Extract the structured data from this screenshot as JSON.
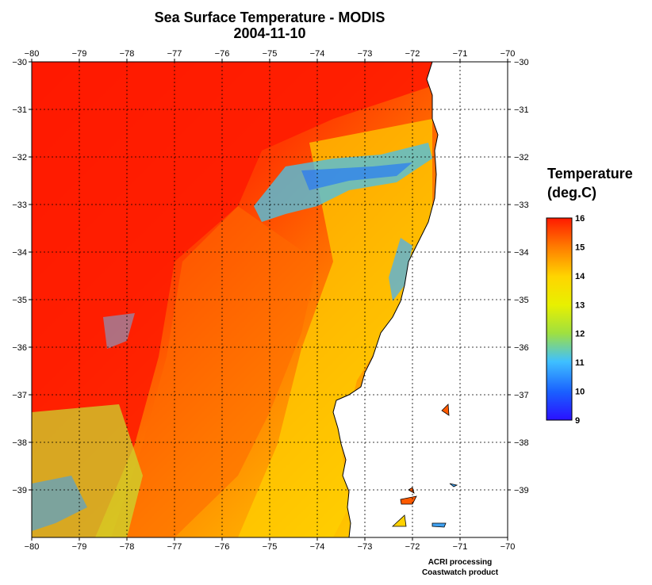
{
  "title": {
    "line1": "Sea Surface Temperature - MODIS",
    "line2": "2004-11-10"
  },
  "map": {
    "lon_ticks": [
      -80,
      -79,
      -78,
      -77,
      -76,
      -75,
      -74,
      -73,
      -72,
      -71,
      -70
    ],
    "lat_ticks_left": [
      -30,
      -31,
      -32,
      -33,
      -34,
      -35,
      -36,
      -37,
      -38,
      -39
    ],
    "lat_ticks_right": [
      -30,
      -31,
      -32,
      -33,
      -34,
      -35,
      -36,
      -37,
      -38,
      -39
    ],
    "lon_range": [
      -80,
      -70
    ],
    "lat_range": [
      -30,
      -40
    ],
    "grid": "dotted",
    "land_color": "#ffffff",
    "coastline_color": "#000000"
  },
  "legend": {
    "title_line1": "Temperature",
    "title_line2": "(deg.C)",
    "labels": [
      "16",
      "15",
      "14",
      "13",
      "12",
      "11",
      "10",
      "9"
    ],
    "colors": [
      "#ff1a00",
      "#ff7a00",
      "#ffd500",
      "#e8f000",
      "#9fe040",
      "#3fc0ff",
      "#1a60ff",
      "#2a10ff"
    ]
  },
  "credits": {
    "line1": "ACRI processing",
    "line2": "Coastwatch product"
  }
}
